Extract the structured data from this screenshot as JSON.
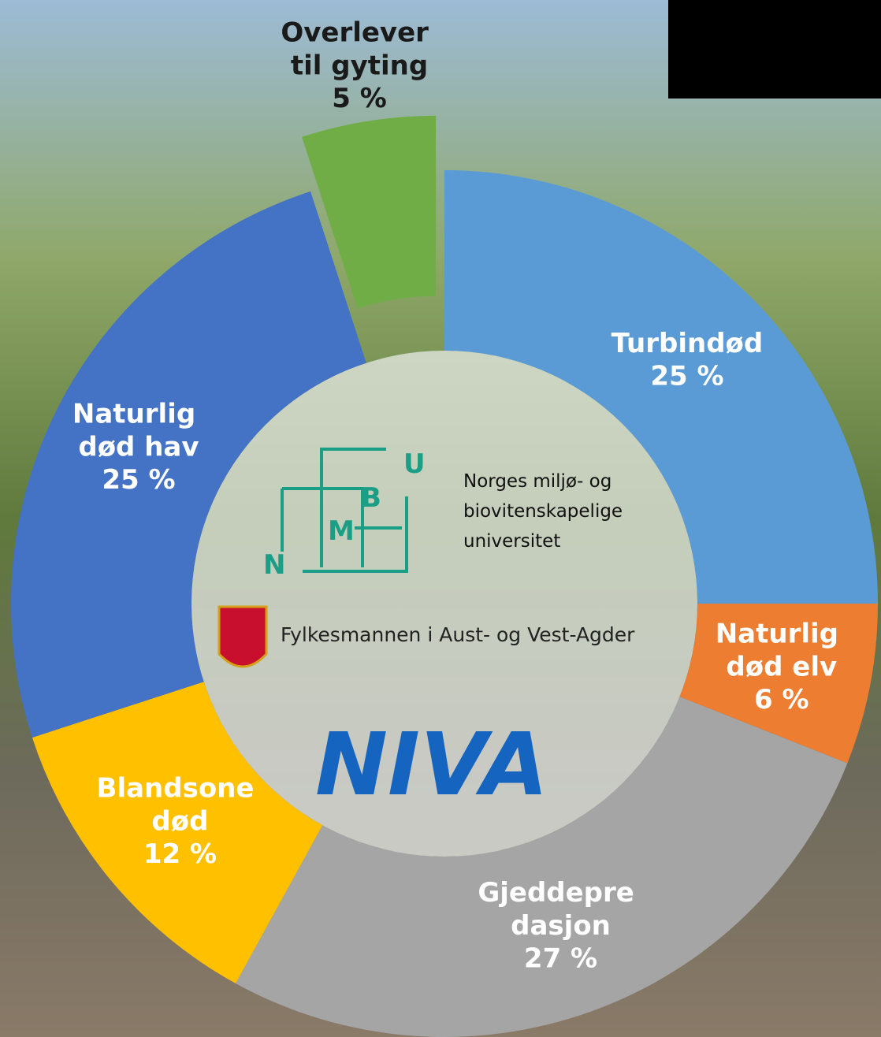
{
  "chart_data": {
    "type": "donut",
    "categories": [
      "Turbindød",
      "Naturlig\ndød elv",
      "Gjeddepre\ndasjon",
      "Blandsone\ndød",
      "Naturlig\ndød hav",
      "Overlever\ntil gyting"
    ],
    "values": [
      25,
      6,
      27,
      12,
      25,
      5
    ],
    "value_labels": [
      "25 %",
      "6 %",
      "27 %",
      "12 %",
      "25 %",
      "5 %"
    ],
    "colors": [
      "#5b9bd5",
      "#ed7d31",
      "#a5a5a5",
      "#ffc000",
      "#4472c4",
      "#70ad47"
    ]
  },
  "logos": {
    "nmbu_letters": [
      "N",
      "M",
      "B",
      "U"
    ],
    "nmbu_name": [
      "Norges miljø- og",
      "biovitenskapelige",
      "universitet"
    ],
    "fylkesmannen": "Fylkesmannen i Aust- og Vest-Agder",
    "niva": "NIVA"
  }
}
